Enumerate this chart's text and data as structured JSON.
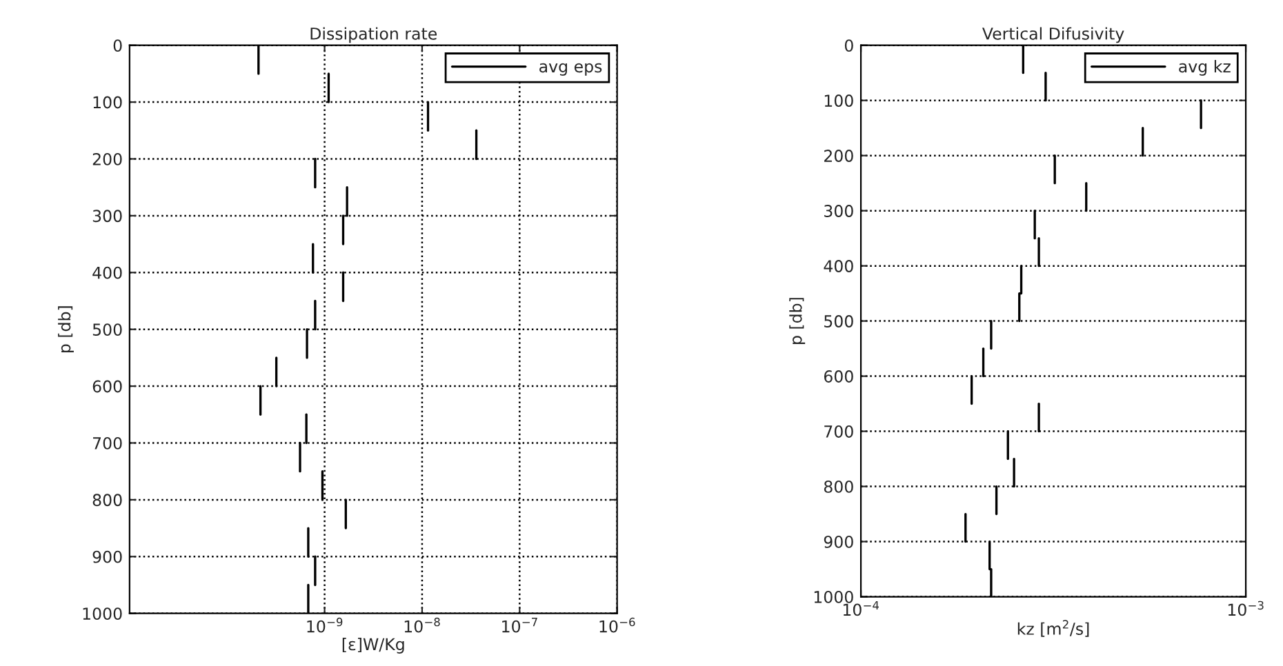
{
  "chart_data": [
    {
      "type": "line",
      "title": "Dissipation rate",
      "xlabel": "[ε]W/Kg",
      "ylabel": "p [db]",
      "log": "x",
      "xlim": [
        1e-11,
        1e-06
      ],
      "xticks": [
        {
          "value": 1e-09,
          "label": "10$^{−9}$"
        },
        {
          "value": 1e-08,
          "label": "10$^{−8}$"
        },
        {
          "value": 1e-07,
          "label": "10$^{−7}$"
        },
        {
          "value": 1e-06,
          "label": "10$^{−6}$"
        }
      ],
      "ylim": [
        1000,
        0
      ],
      "yticks": [
        0,
        100,
        200,
        300,
        400,
        500,
        600,
        700,
        800,
        900,
        1000
      ],
      "grid": true,
      "line_style": "solid",
      "marker": "none",
      "legend": "top right",
      "series": [
        {
          "name": "avg eps",
          "color": "#000000",
          "x": [
            2.1e-10,
            2.1e-10
          ],
          "values": [
            0,
            50
          ]
        },
        {
          "color": "#000000",
          "x": [
            1.1e-09,
            1.1e-09
          ],
          "values": [
            50,
            100
          ]
        },
        {
          "color": "#000000",
          "x": [
            1.15e-08,
            1.15e-08
          ],
          "values": [
            100,
            150
          ]
        },
        {
          "color": "#000000",
          "x": [
            3.6e-08,
            3.6e-08
          ],
          "values": [
            150,
            200
          ]
        },
        {
          "color": "#000000",
          "x": [
            8e-10,
            8e-10
          ],
          "values": [
            200,
            250
          ]
        },
        {
          "color": "#000000",
          "x": [
            1.7e-09,
            1.7e-09
          ],
          "values": [
            250,
            300
          ]
        },
        {
          "color": "#000000",
          "x": [
            1.55e-09,
            1.55e-09
          ],
          "values": [
            300,
            350
          ]
        },
        {
          "color": "#000000",
          "x": [
            7.6e-10,
            7.6e-10
          ],
          "values": [
            350,
            400
          ]
        },
        {
          "color": "#000000",
          "x": [
            1.55e-09,
            1.55e-09
          ],
          "values": [
            400,
            450
          ]
        },
        {
          "color": "#000000",
          "x": [
            8e-10,
            8e-10
          ],
          "values": [
            450,
            500
          ]
        },
        {
          "color": "#000000",
          "x": [
            6.6e-10,
            6.6e-10
          ],
          "values": [
            500,
            550
          ]
        },
        {
          "color": "#000000",
          "x": [
            3.2e-10,
            3.2e-10
          ],
          "values": [
            550,
            600
          ]
        },
        {
          "color": "#000000",
          "x": [
            2.2e-10,
            2.2e-10
          ],
          "values": [
            600,
            650
          ]
        },
        {
          "color": "#000000",
          "x": [
            6.5e-10,
            6.5e-10
          ],
          "values": [
            650,
            700
          ]
        },
        {
          "color": "#000000",
          "x": [
            5.6e-10,
            5.6e-10
          ],
          "values": [
            700,
            750
          ]
        },
        {
          "color": "#000000",
          "x": [
            9.5e-10,
            9.5e-10
          ],
          "values": [
            750,
            800
          ]
        },
        {
          "color": "#000000",
          "x": [
            1.65e-09,
            1.65e-09
          ],
          "values": [
            800,
            850
          ]
        },
        {
          "color": "#000000",
          "x": [
            6.8e-10,
            6.8e-10
          ],
          "values": [
            850,
            900
          ]
        },
        {
          "color": "#000000",
          "x": [
            8e-10,
            8e-10
          ],
          "values": [
            900,
            950
          ]
        },
        {
          "color": "#000000",
          "x": [
            6.8e-10,
            6.8e-10
          ],
          "values": [
            950,
            1000
          ]
        }
      ]
    },
    {
      "type": "line",
      "title": "Vertical Difusivity",
      "xlabel": "kz [m$^{2}$/s]",
      "ylabel": "p [db]",
      "log": "x",
      "xlim": [
        0.0001,
        0.001
      ],
      "xticks": [
        {
          "value": 0.0001,
          "label": "10$^{−4}$"
        },
        {
          "value": 0.001,
          "label": "10$^{−3}$"
        }
      ],
      "ylim": [
        1000,
        0
      ],
      "yticks": [
        0,
        100,
        200,
        300,
        400,
        500,
        600,
        700,
        800,
        900,
        1000
      ],
      "grid": "y",
      "line_style": "solid",
      "marker": "none",
      "legend": "top right",
      "series": [
        {
          "name": "avg kz",
          "color": "#000000",
          "x": [
            0.000264,
            0.000264
          ],
          "values": [
            0,
            50
          ]
        },
        {
          "color": "#000000",
          "x": [
            0.000302,
            0.000302
          ],
          "values": [
            50,
            100
          ]
        },
        {
          "color": "#000000",
          "x": [
            0.000765,
            0.000765
          ],
          "values": [
            100,
            150
          ]
        },
        {
          "color": "#000000",
          "x": [
            0.00054,
            0.00054
          ],
          "values": [
            150,
            200
          ]
        },
        {
          "color": "#000000",
          "x": [
            0.000319,
            0.000319
          ],
          "values": [
            200,
            250
          ]
        },
        {
          "color": "#000000",
          "x": [
            0.000385,
            0.000385
          ],
          "values": [
            250,
            300
          ]
        },
        {
          "color": "#000000",
          "x": [
            0.000283,
            0.000283
          ],
          "values": [
            300,
            350
          ]
        },
        {
          "color": "#000000",
          "x": [
            0.00029,
            0.00029
          ],
          "values": [
            350,
            400
          ]
        },
        {
          "color": "#000000",
          "x": [
            0.000261,
            0.000261,
            0.000258,
            0.000258
          ],
          "values": [
            400,
            450,
            450,
            500
          ]
        },
        {
          "color": "#000000",
          "x": [
            0.000218,
            0.000218
          ],
          "values": [
            500,
            550
          ]
        },
        {
          "color": "#000000",
          "x": [
            0.000208,
            0.000208
          ],
          "values": [
            550,
            600
          ]
        },
        {
          "color": "#000000",
          "x": [
            0.000194,
            0.000194
          ],
          "values": [
            600,
            650
          ]
        },
        {
          "color": "#000000",
          "x": [
            0.00029,
            0.00029
          ],
          "values": [
            650,
            700
          ]
        },
        {
          "color": "#000000",
          "x": [
            0.000241,
            0.000241
          ],
          "values": [
            700,
            750
          ]
        },
        {
          "color": "#000000",
          "x": [
            0.00025,
            0.00025
          ],
          "values": [
            750,
            800
          ]
        },
        {
          "color": "#000000",
          "x": [
            0.000225,
            0.000225
          ],
          "values": [
            800,
            850
          ]
        },
        {
          "color": "#000000",
          "x": [
            0.000187,
            0.000187
          ],
          "values": [
            850,
            900
          ]
        },
        {
          "color": "#000000",
          "x": [
            0.000216,
            0.000216,
            0.000218,
            0.000218
          ],
          "values": [
            900,
            950,
            950,
            1000
          ]
        }
      ]
    }
  ]
}
